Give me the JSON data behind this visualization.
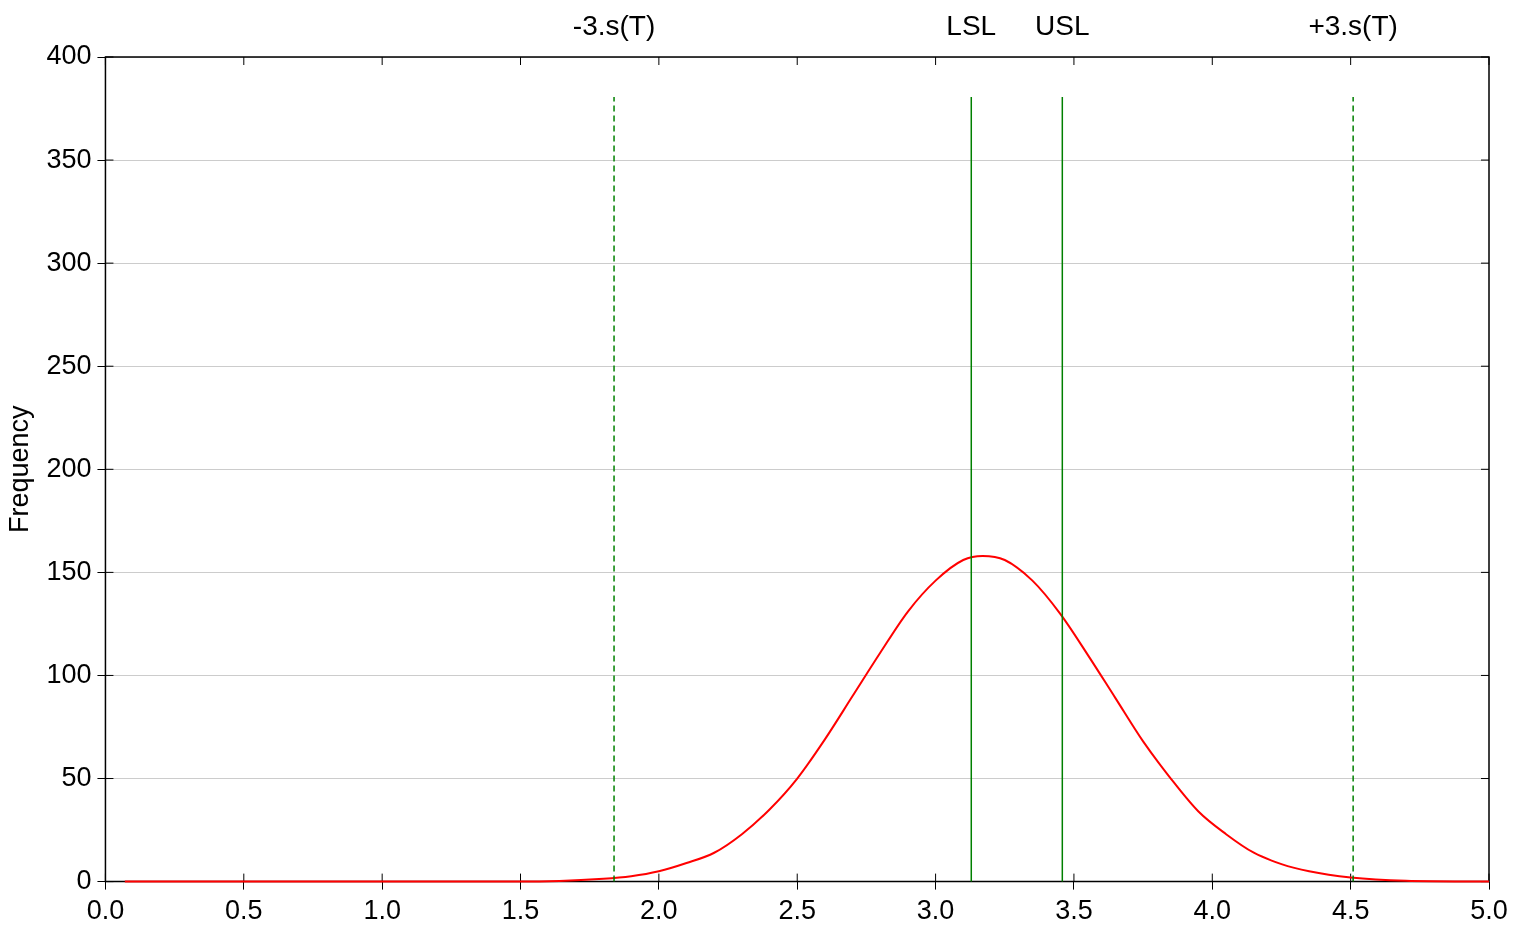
{
  "chart_data": {
    "type": "line",
    "ylabel": "Frequency",
    "x": [
      0.07,
      0.5,
      1.0,
      1.5,
      1.8,
      1.9,
      2.0,
      2.1,
      2.2,
      2.3,
      2.4,
      2.5,
      2.6,
      2.7,
      2.8,
      2.9,
      3.0,
      3.1,
      3.17,
      3.25,
      3.35,
      3.45,
      3.55,
      3.65,
      3.75,
      3.85,
      3.95,
      4.05,
      4.15,
      4.25,
      4.35,
      4.5,
      4.7,
      5.0
    ],
    "series": [
      {
        "color": "#ff0000",
        "values": [
          0,
          0,
          0,
          0,
          1.4,
          2.6,
          5,
          9,
          14,
          23,
          35,
          50,
          69,
          90,
          111,
          131,
          146,
          156,
          158,
          156,
          146,
          130,
          110,
          89,
          68,
          50,
          34,
          23,
          14,
          8.5,
          5,
          2,
          0.4,
          0
        ]
      }
    ],
    "xlim": [
      0,
      5
    ],
    "xticks": [
      {
        "value": 0,
        "label": "0.0"
      },
      {
        "value": 0.5,
        "label": "0.5"
      },
      {
        "value": 1,
        "label": "1.0"
      },
      {
        "value": 1.5,
        "label": "1.5"
      },
      {
        "value": 2,
        "label": "2.0"
      },
      {
        "value": 2.5,
        "label": "2.5"
      },
      {
        "value": 3,
        "label": "3.0"
      },
      {
        "value": 3.5,
        "label": "3.5"
      },
      {
        "value": 4,
        "label": "4.0"
      },
      {
        "value": 4.5,
        "label": "4.5"
      },
      {
        "value": 5,
        "label": "5.0"
      }
    ],
    "ylim": [
      0,
      400
    ],
    "yticks": [
      0,
      50,
      100,
      150,
      200,
      250,
      300,
      350,
      400
    ],
    "grid": "y",
    "legend": false,
    "marker": "none",
    "line_style": "solid",
    "ref_lines": [
      {
        "axis": "x",
        "value": 1.838,
        "label": "-3.s(T)",
        "color": "#008000",
        "line_style": "dashed"
      },
      {
        "axis": "x",
        "value": 3.129,
        "label": "LSL",
        "color": "#008000",
        "line_style": "solid"
      },
      {
        "axis": "x",
        "value": 3.458,
        "label": "USL",
        "color": "#008000",
        "line_style": "solid"
      },
      {
        "axis": "x",
        "value": 4.509,
        "label": "+3.s(T)",
        "color": "#008000",
        "line_style": "dashed"
      }
    ]
  }
}
